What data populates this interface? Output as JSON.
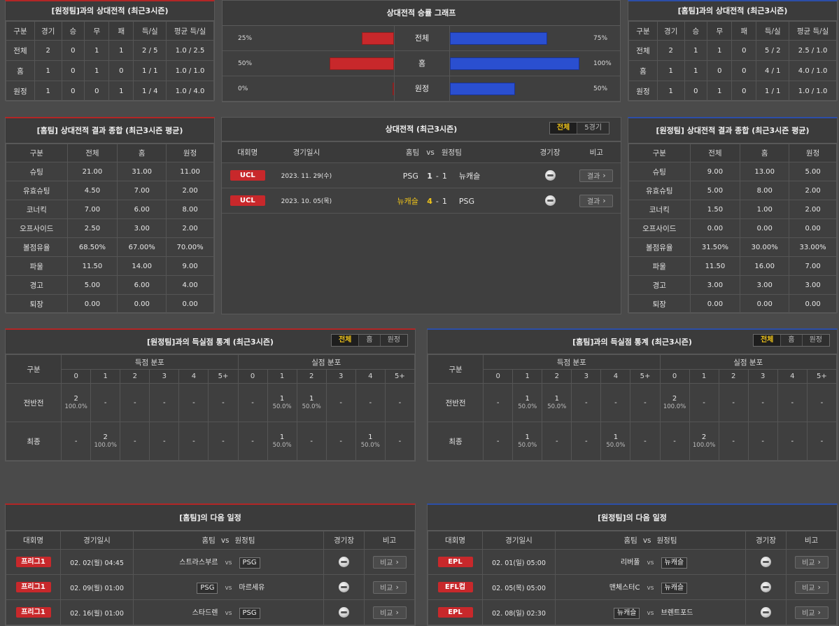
{
  "h2h_left": {
    "title": "[원정팀]과의 상대전적 (최근3시즌)",
    "headers": [
      "구분",
      "경기",
      "승",
      "무",
      "패",
      "득/실",
      "평균 득/실"
    ],
    "rows": [
      [
        "전체",
        "2",
        "0",
        "1",
        "1",
        "2 / 5",
        "1.0 / 2.5"
      ],
      [
        "홈",
        "1",
        "0",
        "1",
        "0",
        "1 / 1",
        "1.0 / 1.0"
      ],
      [
        "원정",
        "1",
        "0",
        "0",
        "1",
        "1 / 4",
        "1.0 / 4.0"
      ]
    ]
  },
  "win_graph": {
    "title": "상대전적 승률 그래프",
    "rows": [
      {
        "label": "전체",
        "left_text": "25%",
        "left_value": 25,
        "right_text": "75%",
        "right_value": 75
      },
      {
        "label": "홈",
        "left_text": "50%",
        "left_value": 50,
        "right_text": "100%",
        "right_value": 100
      },
      {
        "label": "원정",
        "left_text": "0%",
        "left_value": 0,
        "right_text": "50%",
        "right_value": 50
      }
    ],
    "colors": {
      "left": "#c8282b",
      "right": "#2a4fd0"
    }
  },
  "h2h_right": {
    "title": "[홈팀]과의 상대전적 (최근3시즌)",
    "headers": [
      "구분",
      "경기",
      "승",
      "무",
      "패",
      "득/실",
      "평균 득/실"
    ],
    "rows": [
      [
        "전체",
        "2",
        "1",
        "1",
        "0",
        "5 / 2",
        "2.5 / 1.0"
      ],
      [
        "홈",
        "1",
        "1",
        "0",
        "0",
        "4 / 1",
        "4.0 / 1.0"
      ],
      [
        "원정",
        "1",
        "0",
        "1",
        "0",
        "1 / 1",
        "1.0 / 1.0"
      ]
    ]
  },
  "summary_left": {
    "title": "[홈팀] 상대전적 결과 종합 (최근3시즌 평균)",
    "headers": [
      "구분",
      "전체",
      "홈",
      "원정"
    ],
    "rows": [
      [
        "슈팅",
        "21.00",
        "31.00",
        "11.00"
      ],
      [
        "유효슈팅",
        "4.50",
        "7.00",
        "2.00"
      ],
      [
        "코너킥",
        "7.00",
        "6.00",
        "8.00"
      ],
      [
        "오프사이드",
        "2.50",
        "3.00",
        "2.00"
      ],
      [
        "볼점유율",
        "68.50%",
        "67.00%",
        "70.00%"
      ],
      [
        "파울",
        "11.50",
        "14.00",
        "9.00"
      ],
      [
        "경고",
        "5.00",
        "6.00",
        "4.00"
      ],
      [
        "퇴장",
        "0.00",
        "0.00",
        "0.00"
      ]
    ]
  },
  "h2h_matches": {
    "title": "상대전적 (최근3시즌)",
    "tabs": [
      "전체",
      "5경기"
    ],
    "headers": {
      "league": "대회명",
      "date": "경기일시",
      "home": "홈팀",
      "vs": "vs",
      "away": "원정팀",
      "stadium": "경기장",
      "note": "비고"
    },
    "rows": [
      {
        "league": "UCL",
        "date": "2023. 11. 29(수)",
        "home": "PSG",
        "home_score": "1",
        "sep": "-",
        "away_score": "1",
        "away": "뉴캐슬",
        "btn": "결과"
      },
      {
        "league": "UCL",
        "date": "2023. 10. 05(목)",
        "home": "뉴캐슬",
        "home_score": "4",
        "sep": "-",
        "away_score": "1",
        "away": "PSG",
        "btn": "결과"
      }
    ]
  },
  "summary_right": {
    "title": "[원정팀] 상대전적 결과 종합 (최근3시즌 평균)",
    "headers": [
      "구분",
      "전체",
      "홈",
      "원정"
    ],
    "rows": [
      [
        "슈팅",
        "9.00",
        "13.00",
        "5.00"
      ],
      [
        "유효슈팅",
        "5.00",
        "8.00",
        "2.00"
      ],
      [
        "코너킥",
        "1.50",
        "1.00",
        "2.00"
      ],
      [
        "오프사이드",
        "0.00",
        "0.00",
        "0.00"
      ],
      [
        "볼점유율",
        "31.50%",
        "30.00%",
        "33.00%"
      ],
      [
        "파울",
        "11.50",
        "16.00",
        "7.00"
      ],
      [
        "경고",
        "3.00",
        "3.00",
        "3.00"
      ],
      [
        "퇴장",
        "0.00",
        "0.00",
        "0.00"
      ]
    ]
  },
  "goals_left": {
    "title": "[원정팀]과의 득실점 통계 (최근3시즌)",
    "tabs": [
      "전체",
      "홈",
      "원정"
    ],
    "col0": "구분",
    "group1": "득점 분포",
    "group2": "실점 분포",
    "bins": [
      "0",
      "1",
      "2",
      "3",
      "4",
      "5+"
    ],
    "rows": [
      {
        "label": "전반전",
        "cells": [
          [
            "2",
            "100.0%"
          ],
          [
            "-",
            ""
          ],
          [
            "-",
            ""
          ],
          [
            "-",
            ""
          ],
          [
            "-",
            ""
          ],
          [
            "-",
            ""
          ],
          [
            "-",
            ""
          ],
          [
            "1",
            "50.0%"
          ],
          [
            "1",
            "50.0%"
          ],
          [
            "-",
            ""
          ],
          [
            "-",
            ""
          ],
          [
            "-",
            ""
          ]
        ]
      },
      {
        "label": "최종",
        "cells": [
          [
            "-",
            ""
          ],
          [
            "2",
            "100.0%"
          ],
          [
            "-",
            ""
          ],
          [
            "-",
            ""
          ],
          [
            "-",
            ""
          ],
          [
            "-",
            ""
          ],
          [
            "-",
            ""
          ],
          [
            "1",
            "50.0%"
          ],
          [
            "-",
            ""
          ],
          [
            "-",
            ""
          ],
          [
            "1",
            "50.0%"
          ],
          [
            "-",
            ""
          ]
        ]
      }
    ]
  },
  "goals_right": {
    "title": "[홈팀]과의 득실점 통계 (최근3시즌)",
    "tabs": [
      "전체",
      "홈",
      "원정"
    ],
    "col0": "구분",
    "group1": "득점 분포",
    "group2": "실점 분포",
    "bins": [
      "0",
      "1",
      "2",
      "3",
      "4",
      "5+"
    ],
    "rows": [
      {
        "label": "전반전",
        "cells": [
          [
            "-",
            ""
          ],
          [
            "1",
            "50.0%"
          ],
          [
            "1",
            "50.0%"
          ],
          [
            "-",
            ""
          ],
          [
            "-",
            ""
          ],
          [
            "-",
            ""
          ],
          [
            "2",
            "100.0%"
          ],
          [
            "-",
            ""
          ],
          [
            "-",
            ""
          ],
          [
            "-",
            ""
          ],
          [
            "-",
            ""
          ],
          [
            "-",
            ""
          ]
        ]
      },
      {
        "label": "최종",
        "cells": [
          [
            "-",
            ""
          ],
          [
            "1",
            "50.0%"
          ],
          [
            "-",
            ""
          ],
          [
            "-",
            ""
          ],
          [
            "1",
            "50.0%"
          ],
          [
            "-",
            ""
          ],
          [
            "-",
            ""
          ],
          [
            "2",
            "100.0%"
          ],
          [
            "-",
            ""
          ],
          [
            "-",
            ""
          ],
          [
            "-",
            ""
          ],
          [
            "-",
            ""
          ]
        ]
      }
    ]
  },
  "next_home": {
    "title": "[홈팀]의 다음 일정",
    "headers": {
      "league": "대회명",
      "date": "경기일시",
      "home": "홈팀",
      "vs": "vs",
      "away": "원정팀",
      "stadium": "경기장",
      "note": "비고"
    },
    "rows": [
      {
        "league": "프리그1",
        "date": "02. 02(월) 04:45",
        "home": "스트라스부르",
        "away": "PSG",
        "boxed": "away",
        "btn": "비교"
      },
      {
        "league": "프리그1",
        "date": "02. 09(월) 01:00",
        "home": "PSG",
        "away": "마르세유",
        "boxed": "home",
        "btn": "비교"
      },
      {
        "league": "프리그1",
        "date": "02. 16(월) 01:00",
        "home": "스타드렌",
        "away": "PSG",
        "boxed": "away",
        "btn": "비교"
      }
    ]
  },
  "next_away": {
    "title": "[원정팀]의 다음 일정",
    "headers": {
      "league": "대회명",
      "date": "경기일시",
      "home": "홈팀",
      "vs": "vs",
      "away": "원정팀",
      "stadium": "경기장",
      "note": "비고"
    },
    "rows": [
      {
        "league": "EPL",
        "date": "02. 01(일) 05:00",
        "home": "리버풀",
        "away": "뉴캐슬",
        "boxed": "away",
        "btn": "비교"
      },
      {
        "league": "EFL컵",
        "date": "02. 05(목) 05:00",
        "home": "맨체스터C",
        "away": "뉴캐슬",
        "boxed": "away",
        "btn": "비교"
      },
      {
        "league": "EPL",
        "date": "02. 08(일) 02:30",
        "home": "뉴캐슬",
        "away": "브렌트포드",
        "boxed": "home",
        "btn": "비교"
      }
    ]
  }
}
